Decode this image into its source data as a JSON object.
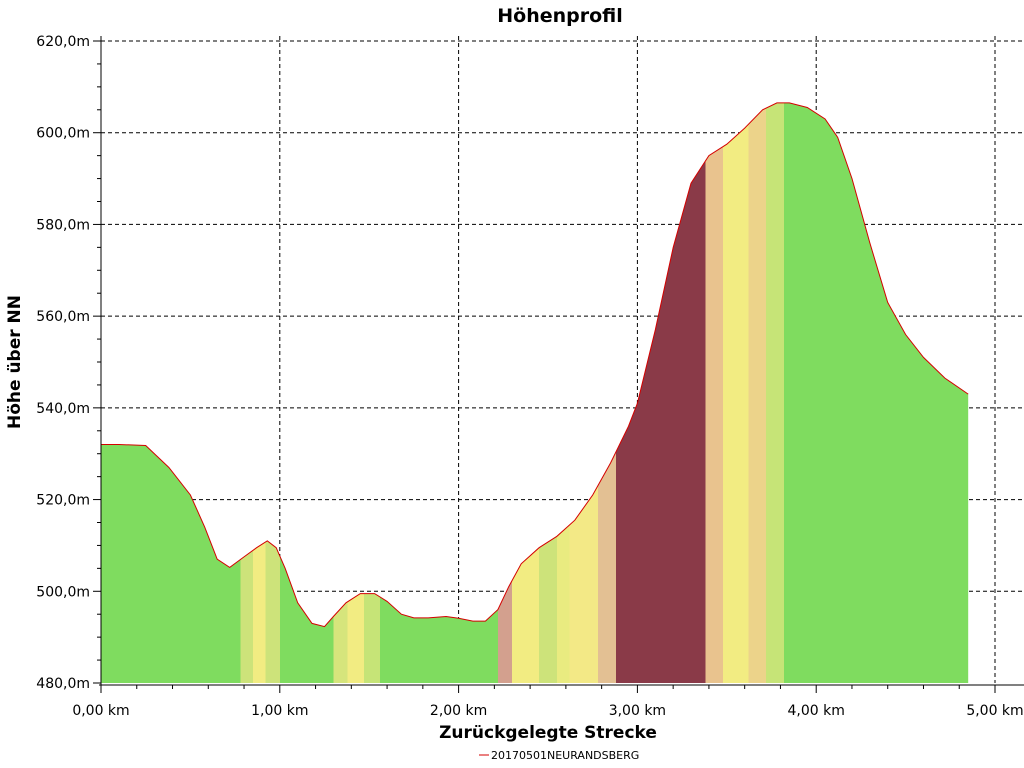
{
  "chart_data": {
    "type": "area",
    "title": "Höhenprofil",
    "xlabel": "Zurückgelegte Strecke",
    "ylabel": "Höhe über NN",
    "xlim": [
      0,
      5
    ],
    "ylim": [
      480,
      620
    ],
    "xticks": [
      0,
      1,
      2,
      3,
      4,
      5
    ],
    "xtick_labels": [
      "0,00 km",
      "1,00 km",
      "2,00 km",
      "3,00 km",
      "4,00 km",
      "5,00 km"
    ],
    "yticks": [
      480,
      500,
      520,
      540,
      560,
      580,
      600,
      620
    ],
    "ytick_labels": [
      "480,0m",
      "500,0m",
      "520,0m",
      "540,0m",
      "560,0m",
      "580,0m",
      "600,0m",
      "620,0m"
    ],
    "grid": true,
    "legend": {
      "position": "bottom-center"
    },
    "series": [
      {
        "name": "20170501NEURANDSBERG",
        "line_color": "#d40000",
        "x": [
          0,
          0.1,
          0.25,
          0.38,
          0.5,
          0.58,
          0.65,
          0.72,
          0.8,
          0.87,
          0.93,
          0.98,
          1.03,
          1.1,
          1.18,
          1.25,
          1.3,
          1.37,
          1.45,
          1.53,
          1.6,
          1.68,
          1.75,
          1.83,
          1.93,
          2.0,
          2.08,
          2.15,
          2.22,
          2.28,
          2.35,
          2.45,
          2.55,
          2.65,
          2.75,
          2.85,
          2.95,
          3.0,
          3.1,
          3.2,
          3.3,
          3.4,
          3.5,
          3.6,
          3.7,
          3.78,
          3.85,
          3.95,
          4.05,
          4.12,
          4.2,
          4.3,
          4.4,
          4.5,
          4.6,
          4.72,
          4.85
        ],
        "y": [
          532,
          532,
          531.8,
          527,
          521,
          514,
          507,
          505.2,
          507.5,
          509.5,
          511,
          509.5,
          505,
          497.5,
          493,
          492.3,
          494.5,
          497.5,
          499.5,
          499.5,
          497.8,
          495,
          494.2,
          494.2,
          494.5,
          494.1,
          493.5,
          493.5,
          496,
          501,
          506,
          509.5,
          512,
          515.5,
          521,
          528,
          536,
          541,
          557,
          575,
          589,
          595,
          597.5,
          601,
          605,
          606.5,
          606.5,
          605.5,
          603,
          599,
          590,
          576,
          563,
          556,
          551,
          546.5,
          543
        ]
      }
    ],
    "fill_gradient_by_segment": [
      {
        "x_from": 0,
        "x_to": 0.78,
        "color": "#7fdc5f"
      },
      {
        "x_from": 0.78,
        "x_to": 0.85,
        "color": "#cde37a"
      },
      {
        "x_from": 0.85,
        "x_to": 0.92,
        "color": "#f2ec82"
      },
      {
        "x_from": 0.92,
        "x_to": 1.0,
        "color": "#cde37a"
      },
      {
        "x_from": 1.0,
        "x_to": 1.3,
        "color": "#7fdc5f"
      },
      {
        "x_from": 1.3,
        "x_to": 1.38,
        "color": "#d6e57c"
      },
      {
        "x_from": 1.38,
        "x_to": 1.47,
        "color": "#f2ec82"
      },
      {
        "x_from": 1.47,
        "x_to": 1.56,
        "color": "#c6e477"
      },
      {
        "x_from": 1.56,
        "x_to": 2.22,
        "color": "#7fdc5f"
      },
      {
        "x_from": 2.22,
        "x_to": 2.3,
        "color": "#d3a08e"
      },
      {
        "x_from": 2.3,
        "x_to": 2.45,
        "color": "#f2ec82"
      },
      {
        "x_from": 2.45,
        "x_to": 2.55,
        "color": "#cde37a"
      },
      {
        "x_from": 2.55,
        "x_to": 2.62,
        "color": "#e9eb80"
      },
      {
        "x_from": 2.62,
        "x_to": 2.78,
        "color": "#f3e986"
      },
      {
        "x_from": 2.78,
        "x_to": 2.88,
        "color": "#e3c093"
      },
      {
        "x_from": 2.88,
        "x_to": 3.38,
        "color": "#8a3a48"
      },
      {
        "x_from": 3.38,
        "x_to": 3.48,
        "color": "#e9c38e"
      },
      {
        "x_from": 3.48,
        "x_to": 3.62,
        "color": "#f2ec82"
      },
      {
        "x_from": 3.62,
        "x_to": 3.72,
        "color": "#ecd38a"
      },
      {
        "x_from": 3.72,
        "x_to": 3.82,
        "color": "#c6e477"
      },
      {
        "x_from": 3.82,
        "x_to": 4.85,
        "color": "#7fdc5f"
      }
    ]
  }
}
